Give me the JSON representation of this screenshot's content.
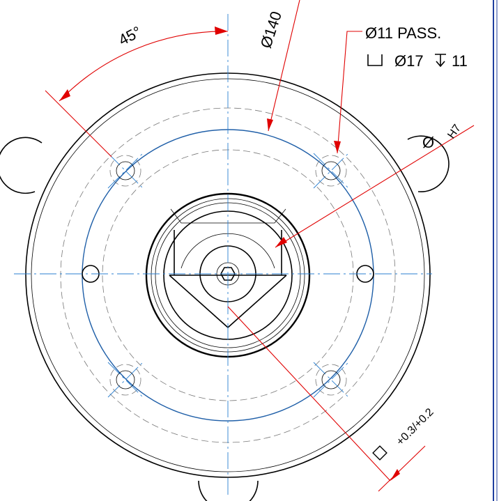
{
  "annotations": {
    "angle": "45°",
    "diameter_140": "Ø140",
    "hole_callout": "Ø11 PASS.",
    "counterbore_diameter": "Ø17",
    "counterbore_depth": "11",
    "bore_symbol": "Ø",
    "bore_tolerance": "H7",
    "flatness_tolerance": "+0.3/+0.2"
  }
}
